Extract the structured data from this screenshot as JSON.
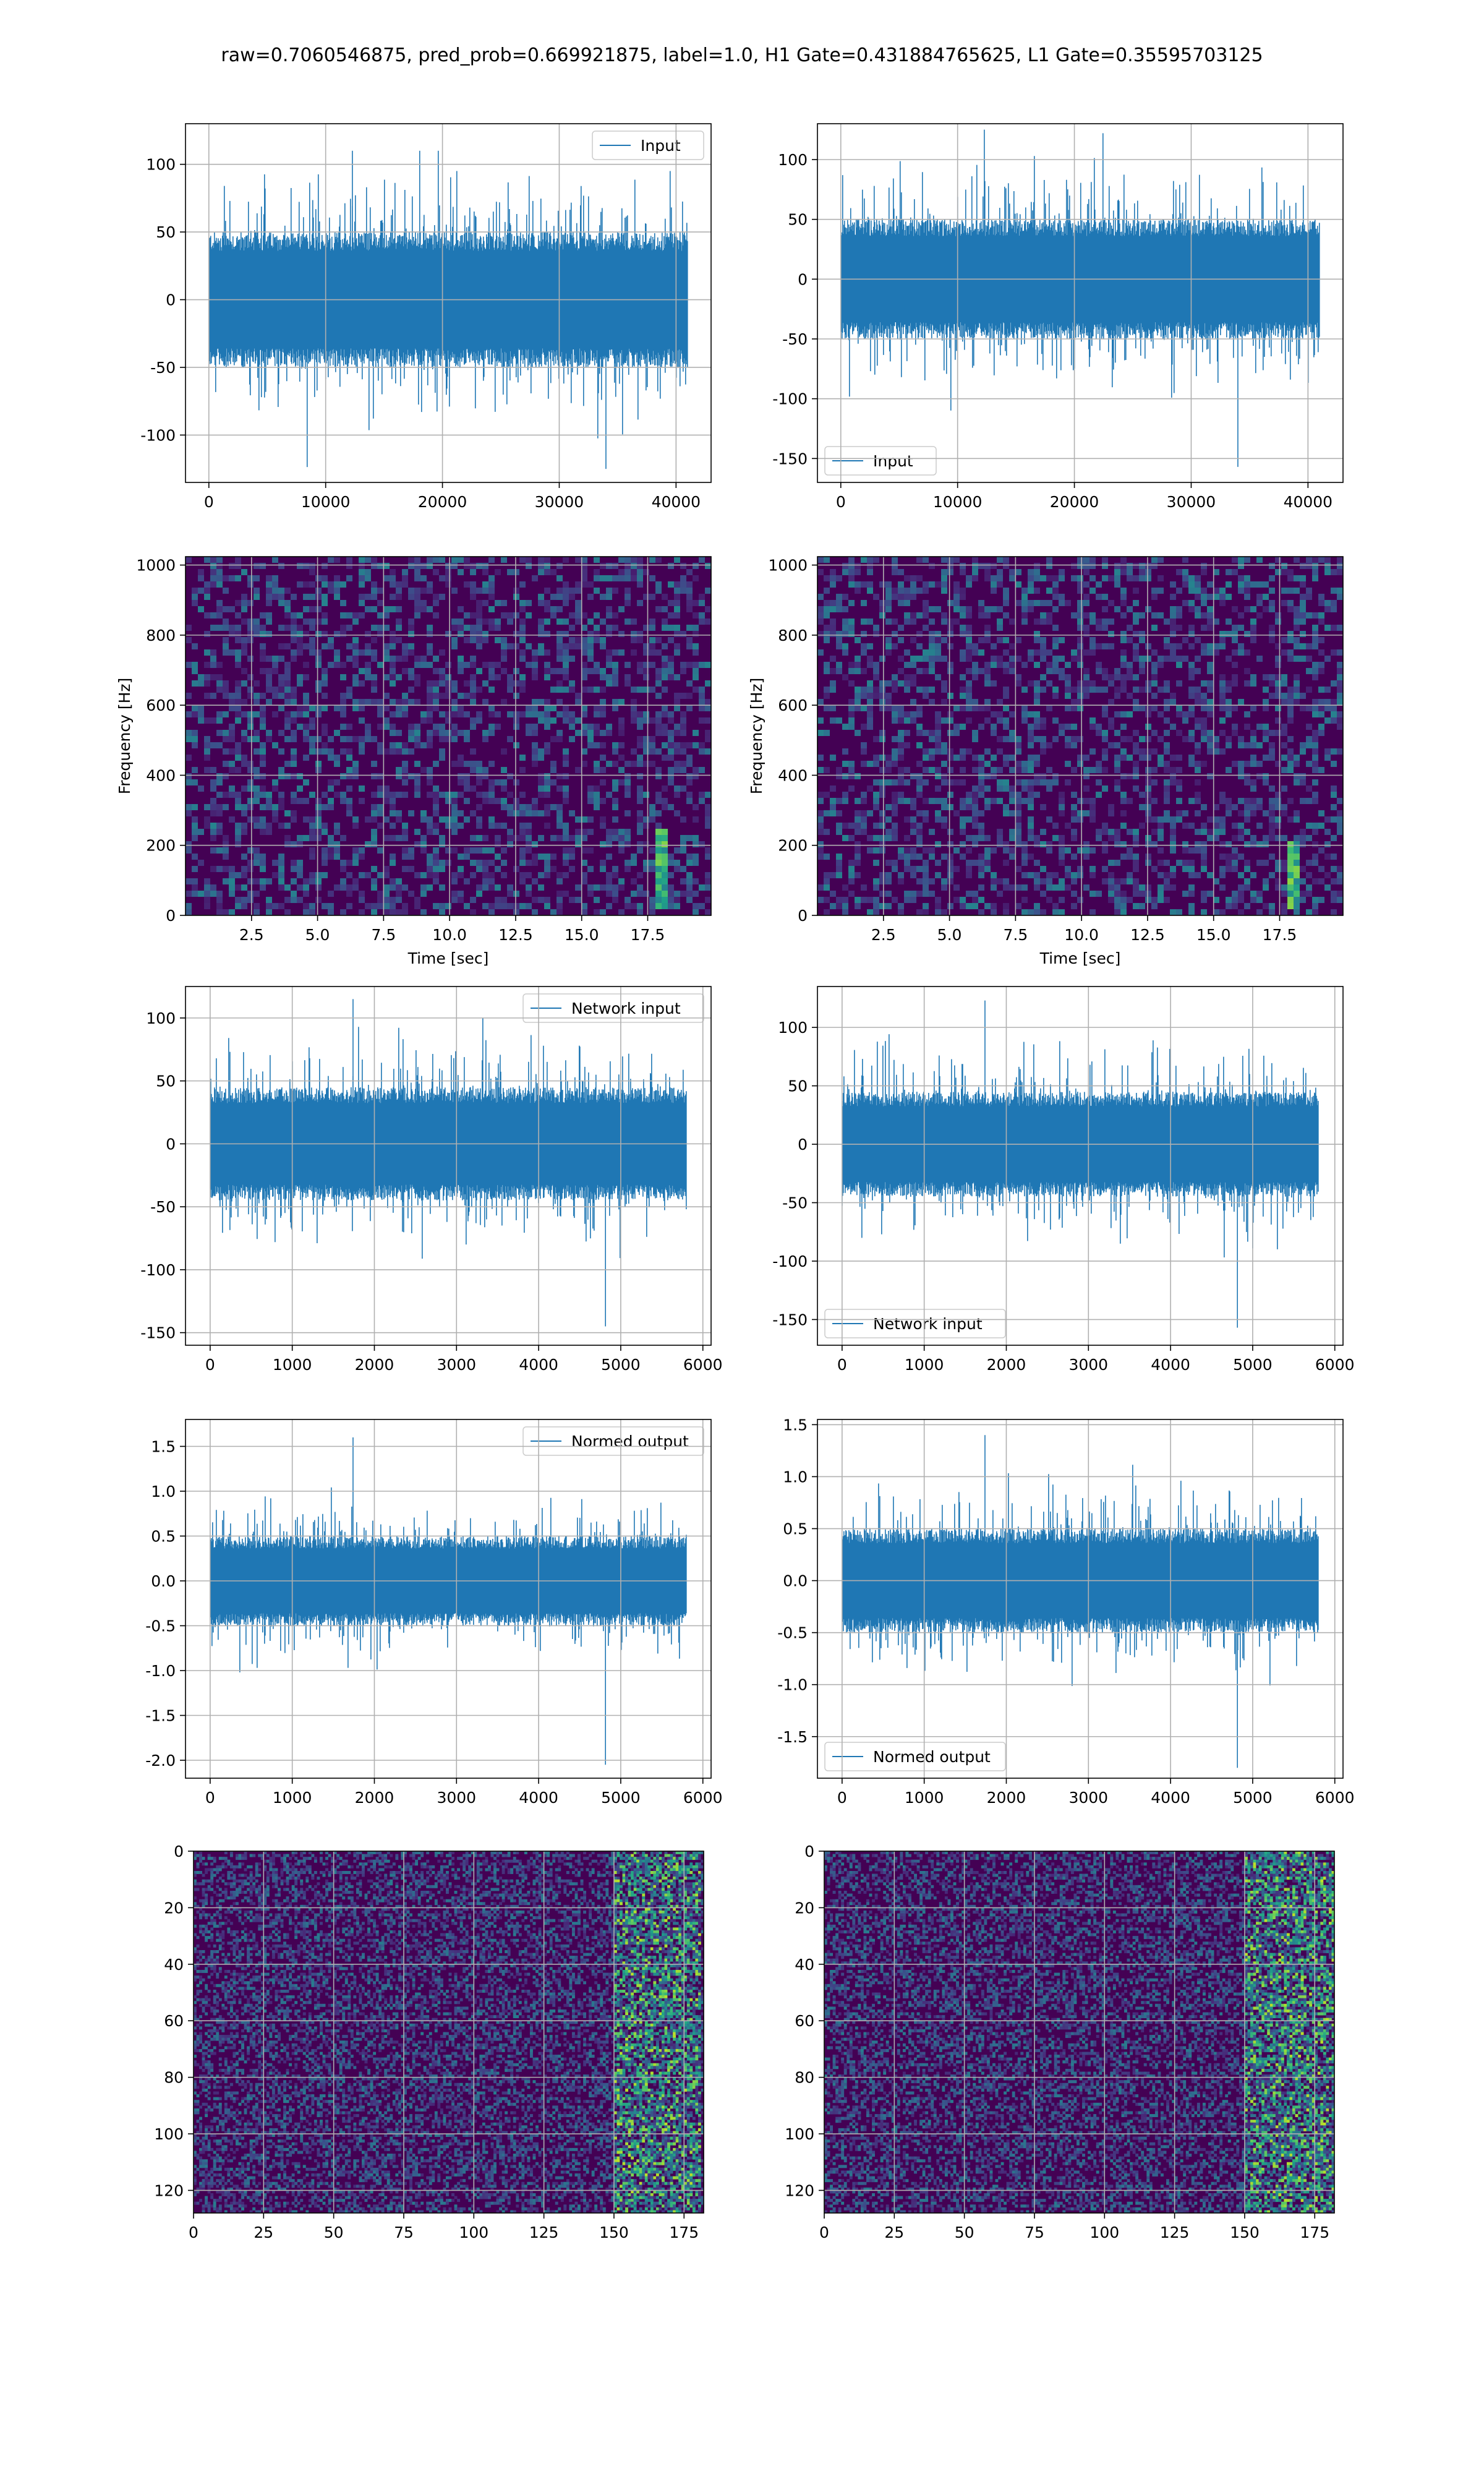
{
  "suptitle": "raw=0.7060546875, pred_prob=0.669921875, label=1.0, H1 Gate=0.431884765625, L1 Gate=0.35595703125",
  "colors": {
    "series": "#1f77b4",
    "grid": "#b0b0b0",
    "viridis_dark": "#440154"
  },
  "chart_data": [
    {
      "type": "line",
      "panel": "H1 input",
      "legend": "Input",
      "legend_loc": "upper right",
      "xlim": [
        -2000,
        43000
      ],
      "ylim": [
        -135,
        130
      ],
      "xticks": [
        0,
        10000,
        20000,
        30000,
        40000
      ],
      "yticks": [
        -100,
        -50,
        0,
        50,
        100
      ],
      "n_samples": 40960,
      "band": [
        -50,
        50
      ],
      "peaks": [
        110,
        -125
      ],
      "grid": true
    },
    {
      "type": "line",
      "panel": "L1 input",
      "legend": "Input",
      "legend_loc": "lower left",
      "xlim": [
        -2000,
        43000
      ],
      "ylim": [
        -170,
        130
      ],
      "xticks": [
        0,
        10000,
        20000,
        30000,
        40000
      ],
      "yticks": [
        -150,
        -100,
        -50,
        0,
        50,
        100
      ],
      "n_samples": 40960,
      "band": [
        -50,
        50
      ],
      "peaks": [
        125,
        -157
      ],
      "grid": true
    },
    {
      "type": "heatmap",
      "panel": "H1 spectrogram",
      "xlabel": "Time [sec]",
      "ylabel": "Frequency [Hz]",
      "xlim": [
        0,
        19.9
      ],
      "ylim": [
        0,
        1024
      ],
      "xticks": [
        2.5,
        5.0,
        7.5,
        10.0,
        12.5,
        15.0,
        17.5
      ],
      "yticks": [
        0,
        200,
        400,
        600,
        800,
        1000
      ],
      "colormap": "viridis",
      "bright_feature": {
        "time": 18.0,
        "freq_range": [
          20,
          250
        ]
      },
      "grid": true
    },
    {
      "type": "heatmap",
      "panel": "L1 spectrogram",
      "xlabel": "Time [sec]",
      "ylabel": "Frequency [Hz]",
      "xlim": [
        0,
        19.9
      ],
      "ylim": [
        0,
        1024
      ],
      "xticks": [
        2.5,
        5.0,
        7.5,
        10.0,
        12.5,
        15.0,
        17.5
      ],
      "yticks": [
        0,
        200,
        400,
        600,
        800,
        1000
      ],
      "colormap": "viridis",
      "bright_feature": {
        "time": 18.1,
        "freq_range": [
          20,
          220
        ]
      },
      "grid": true
    },
    {
      "type": "line",
      "panel": "H1 network input",
      "legend": "Network input",
      "legend_loc": "upper right",
      "xlim": [
        -300,
        6100
      ],
      "ylim": [
        -160,
        125
      ],
      "xticks": [
        0,
        1000,
        2000,
        3000,
        4000,
        5000,
        6000
      ],
      "yticks": [
        -150,
        -100,
        -50,
        0,
        50,
        100
      ],
      "n_samples": 5800,
      "band": [
        -45,
        45
      ],
      "peaks": [
        115,
        -145
      ],
      "grid": true
    },
    {
      "type": "line",
      "panel": "L1 network input",
      "legend": "Network input",
      "legend_loc": "lower left",
      "xlim": [
        -300,
        6100
      ],
      "ylim": [
        -172,
        135
      ],
      "xticks": [
        0,
        1000,
        2000,
        3000,
        4000,
        5000,
        6000
      ],
      "yticks": [
        -150,
        -100,
        -50,
        0,
        50,
        100
      ],
      "n_samples": 5800,
      "band": [
        -45,
        45
      ],
      "peaks": [
        123,
        -157
      ],
      "grid": true
    },
    {
      "type": "line",
      "panel": "H1 normed output",
      "legend": "Normed output",
      "legend_loc": "upper right",
      "xlim": [
        -300,
        6100
      ],
      "ylim": [
        -2.2,
        1.8
      ],
      "xticks": [
        0,
        1000,
        2000,
        3000,
        4000,
        5000,
        6000
      ],
      "yticks": [
        -2.0,
        -1.5,
        -1.0,
        -0.5,
        0.0,
        0.5,
        1.0,
        1.5
      ],
      "n_samples": 5800,
      "band": [
        -0.5,
        0.5
      ],
      "peaks": [
        1.6,
        -2.05
      ],
      "grid": true
    },
    {
      "type": "line",
      "panel": "L1 normed output",
      "legend": "Normed output",
      "legend_loc": "lower left",
      "xlim": [
        -300,
        6100
      ],
      "ylim": [
        -1.9,
        1.55
      ],
      "xticks": [
        0,
        1000,
        2000,
        3000,
        4000,
        5000,
        6000
      ],
      "yticks": [
        -1.5,
        -1.0,
        -0.5,
        0.0,
        0.5,
        1.0,
        1.5
      ],
      "n_samples": 5800,
      "band": [
        -0.5,
        0.5
      ],
      "peaks": [
        1.4,
        -1.8
      ],
      "grid": true
    },
    {
      "type": "heatmap",
      "panel": "H1 feature map",
      "xlim": [
        0,
        182
      ],
      "ylim": [
        128,
        0
      ],
      "xticks": [
        0,
        25,
        50,
        75,
        100,
        125,
        150,
        175
      ],
      "yticks": [
        0,
        20,
        40,
        60,
        80,
        100,
        120
      ],
      "colormap": "viridis",
      "rows": 128,
      "cols": 182,
      "bright_columns": [
        150,
        180
      ],
      "grid": true
    },
    {
      "type": "heatmap",
      "panel": "L1 feature map",
      "xlim": [
        0,
        182
      ],
      "ylim": [
        128,
        0
      ],
      "xticks": [
        0,
        25,
        50,
        75,
        100,
        125,
        150,
        175
      ],
      "yticks": [
        0,
        20,
        40,
        60,
        80,
        100,
        120
      ],
      "colormap": "viridis",
      "rows": 128,
      "cols": 182,
      "bright_columns": [
        150,
        182
      ],
      "grid": true
    }
  ]
}
